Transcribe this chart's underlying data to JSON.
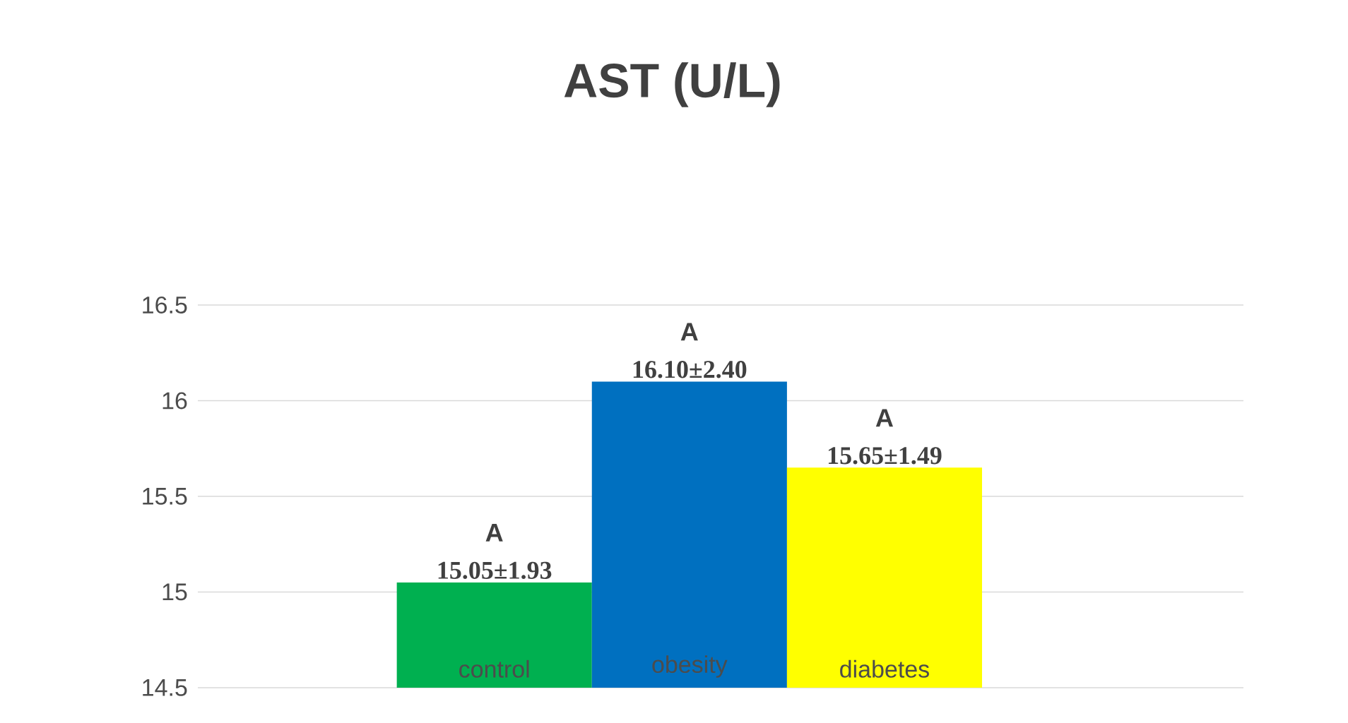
{
  "chart_data": {
    "type": "bar",
    "title": "AST (U/L)",
    "categories": [
      "control",
      "obesity",
      "diabetes"
    ],
    "values": [
      15.05,
      16.1,
      15.65
    ],
    "colors": [
      "#00b050",
      "#0070c0",
      "#ffff00"
    ],
    "value_labels": [
      "15.05±1.93",
      "16.10±2.40",
      "15.65±1.49"
    ],
    "annotations": [
      {
        "text": "A",
        "x": "control",
        "y": 15.05
      },
      {
        "text": "A",
        "x": "obesity",
        "y": 16.1
      },
      {
        "text": "A",
        "x": "diabetes",
        "y": 15.65
      }
    ],
    "ylim": [
      14.5,
      16.5
    ],
    "yticks": [
      14.5,
      15,
      15.5,
      16,
      16.5
    ],
    "grid": "y"
  }
}
